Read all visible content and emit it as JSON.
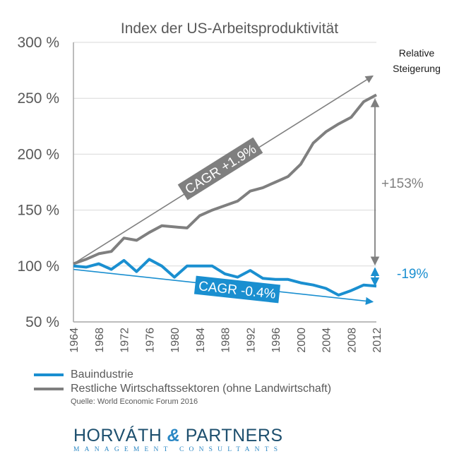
{
  "chart_data": {
    "type": "line",
    "title": "Index der US-Arbeitsproduktivität",
    "xlabel": "",
    "ylabel": "",
    "ylim": [
      50,
      300
    ],
    "yticks": [
      "300 %",
      "250 %",
      "200 %",
      "150 %",
      "100 %",
      "50 %"
    ],
    "ytick_values": [
      300,
      250,
      200,
      150,
      100,
      50
    ],
    "xlim": [
      1964,
      2012
    ],
    "xticks": [
      "1964",
      "1968",
      "1972",
      "1976",
      "1980",
      "1984",
      "1988",
      "1992",
      "1996",
      "2000",
      "2004",
      "2008",
      "2012"
    ],
    "grid": true,
    "x": [
      1964,
      1966,
      1968,
      1970,
      1972,
      1974,
      1976,
      1978,
      1980,
      1982,
      1984,
      1986,
      1988,
      1990,
      1992,
      1994,
      1996,
      1998,
      2000,
      2002,
      2004,
      2006,
      2008,
      2010,
      2012
    ],
    "series": [
      {
        "name": "Bauindustrie",
        "color": "#1a8fd0",
        "values": [
          100,
          99,
          102,
          97,
          105,
          95,
          106,
          100,
          90,
          100,
          100,
          100,
          93,
          90,
          96,
          89,
          88,
          88,
          85,
          83,
          80,
          74,
          78,
          83,
          82
        ]
      },
      {
        "name": "Restliche Wirtschaftssektoren (ohne Landwirtschaft)",
        "color": "#7f7f7f",
        "values": [
          102,
          106,
          111,
          113,
          125,
          123,
          130,
          136,
          135,
          134,
          145,
          150,
          154,
          158,
          167,
          170,
          175,
          180,
          191,
          210,
          220,
          227,
          233,
          247,
          253
        ]
      }
    ],
    "trend_lines": [
      {
        "name": "CAGR +1.9%",
        "label": "CAGR +1.9%",
        "color": "#7f7f7f",
        "from": [
          1964,
          102
        ],
        "to": [
          2012,
          270
        ]
      },
      {
        "name": "CAGR -0.4%",
        "label": "CAGR -0.4%",
        "color": "#1a8fd0",
        "from": [
          1964,
          97
        ],
        "to": [
          2012,
          68
        ]
      }
    ],
    "annotations": {
      "relative_header": [
        "Relative",
        "Steigerung"
      ],
      "gray_delta": "+153%",
      "blue_delta": "-19%"
    },
    "legend": "bottom-left",
    "source": "Quelle: World Economic Forum 2016"
  },
  "branding": {
    "logo_main_left": "HORVÁTH",
    "logo_amp": "&",
    "logo_main_right": "PARTNERS",
    "logo_sub": "MANAGEMENT CONSULTANTS"
  }
}
